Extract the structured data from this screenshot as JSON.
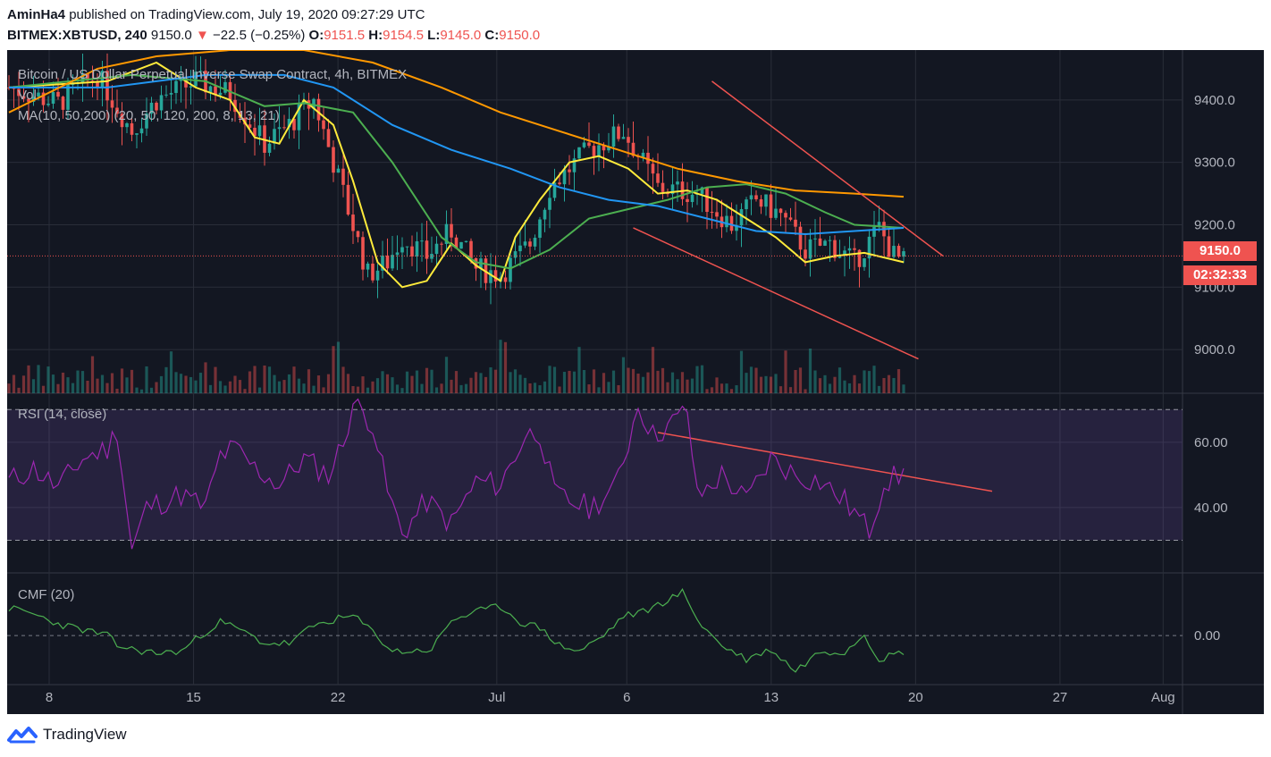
{
  "header": {
    "author": "AminHa4",
    "published_text": "published on TradingView.com, July 19, 2020 09:27:29 UTC",
    "symbol": "BITMEX:XBTUSD, 240",
    "last": "9150.0",
    "change_arrow": "▼",
    "change": "−22.5 (−0.25%)",
    "o_label": "O:",
    "o": "9151.5",
    "h_label": "H:",
    "h": "9154.5",
    "l_label": "L:",
    "l": "9145.0",
    "c_label": "C:",
    "c": "9150.0"
  },
  "legend": {
    "title": "Bitcoin / US Dollar Perpetual Inverse Swap Contract, 4h, BITMEX",
    "vol": "Vol",
    "ma": "MA(10, 50,200) (20, 50, 120, 200, 8, 13, 21)",
    "rsi": "RSI (14, close)",
    "cmf": "CMF (20)"
  },
  "price_tag": {
    "value": "9150.0",
    "countdown": "02:32:33"
  },
  "footer": {
    "brand": "TradingView"
  },
  "colors": {
    "background": "#131722",
    "grid": "#2a2e39",
    "up": "#26a69a",
    "down": "#ef5350",
    "ma_yellow": "#ffeb3b",
    "ma_green": "#4caf50",
    "ma_blue": "#2196f3",
    "ma_orange": "#ff9800",
    "rsi": "#9c27b0",
    "cmf": "#4caf50",
    "trendline": "#ef5350"
  },
  "chart_data": {
    "type": "candlestick",
    "x_ticks": [
      "8",
      "15",
      "22",
      "Jul",
      "6",
      "13",
      "20",
      "27",
      "Aug"
    ],
    "price_axis": {
      "ticks": [
        "9400.0",
        "9300.0",
        "9200.0",
        "9100.0",
        "9000.0"
      ],
      "range": [
        8930,
        9480
      ]
    },
    "rsi_axis": {
      "ticks": [
        "60.00",
        "40.00"
      ],
      "bands": [
        70,
        30
      ],
      "range": [
        20,
        75
      ]
    },
    "cmf_axis": {
      "ticks": [
        "0.00"
      ],
      "range": [
        -0.25,
        0.32
      ]
    },
    "price_path": [
      [
        0,
        9420
      ],
      [
        10,
        9395
      ],
      [
        18,
        9440
      ],
      [
        25,
        9350
      ],
      [
        30,
        9400
      ],
      [
        38,
        9430
      ],
      [
        45,
        9410
      ],
      [
        52,
        9330
      ],
      [
        57,
        9360
      ],
      [
        62,
        9400
      ],
      [
        68,
        9250
      ],
      [
        73,
        9120
      ],
      [
        77,
        9140
      ],
      [
        80,
        9180
      ],
      [
        85,
        9150
      ],
      [
        90,
        9190
      ],
      [
        95,
        9130
      ],
      [
        100,
        9120
      ],
      [
        106,
        9170
      ],
      [
        110,
        9260
      ],
      [
        118,
        9320
      ],
      [
        125,
        9350
      ],
      [
        132,
        9260
      ],
      [
        140,
        9250
      ],
      [
        147,
        9200
      ],
      [
        152,
        9240
      ],
      [
        157,
        9215
      ],
      [
        162,
        9160
      ],
      [
        167,
        9170
      ],
      [
        172,
        9140
      ],
      [
        177,
        9195
      ],
      [
        180,
        9150
      ],
      [
        182,
        9140
      ]
    ],
    "ma_series": [
      {
        "color": "ma_yellow",
        "points": [
          [
            0,
            9420
          ],
          [
            20,
            9430
          ],
          [
            30,
            9460
          ],
          [
            38,
            9420
          ],
          [
            45,
            9400
          ],
          [
            50,
            9340
          ],
          [
            55,
            9330
          ],
          [
            60,
            9400
          ],
          [
            66,
            9360
          ],
          [
            70,
            9270
          ],
          [
            75,
            9140
          ],
          [
            80,
            9100
          ],
          [
            85,
            9110
          ],
          [
            90,
            9170
          ],
          [
            95,
            9135
          ],
          [
            100,
            9110
          ],
          [
            103,
            9180
          ],
          [
            108,
            9240
          ],
          [
            114,
            9300
          ],
          [
            120,
            9310
          ],
          [
            126,
            9290
          ],
          [
            132,
            9250
          ],
          [
            138,
            9255
          ],
          [
            144,
            9240
          ],
          [
            150,
            9210
          ],
          [
            156,
            9180
          ],
          [
            162,
            9140
          ],
          [
            168,
            9150
          ],
          [
            174,
            9155
          ],
          [
            182,
            9140
          ]
        ]
      },
      {
        "color": "ma_green",
        "points": [
          [
            0,
            9420
          ],
          [
            25,
            9440
          ],
          [
            40,
            9430
          ],
          [
            52,
            9390
          ],
          [
            60,
            9395
          ],
          [
            70,
            9380
          ],
          [
            78,
            9300
          ],
          [
            88,
            9180
          ],
          [
            95,
            9140
          ],
          [
            102,
            9130
          ],
          [
            110,
            9160
          ],
          [
            118,
            9210
          ],
          [
            126,
            9225
          ],
          [
            134,
            9240
          ],
          [
            142,
            9260
          ],
          [
            150,
            9265
          ],
          [
            158,
            9250
          ],
          [
            166,
            9220
          ],
          [
            172,
            9200
          ],
          [
            182,
            9195
          ]
        ]
      },
      {
        "color": "ma_blue",
        "points": [
          [
            0,
            9420
          ],
          [
            20,
            9420
          ],
          [
            40,
            9440
          ],
          [
            56,
            9440
          ],
          [
            66,
            9420
          ],
          [
            78,
            9360
          ],
          [
            90,
            9320
          ],
          [
            102,
            9290
          ],
          [
            112,
            9260
          ],
          [
            122,
            9240
          ],
          [
            132,
            9230
          ],
          [
            142,
            9210
          ],
          [
            152,
            9190
          ],
          [
            162,
            9185
          ],
          [
            172,
            9190
          ],
          [
            182,
            9195
          ]
        ]
      },
      {
        "color": "ma_orange",
        "points": [
          [
            0,
            9380
          ],
          [
            18,
            9450
          ],
          [
            30,
            9470
          ],
          [
            45,
            9480
          ],
          [
            60,
            9480
          ],
          [
            74,
            9460
          ],
          [
            88,
            9420
          ],
          [
            100,
            9380
          ],
          [
            112,
            9350
          ],
          [
            124,
            9320
          ],
          [
            136,
            9290
          ],
          [
            148,
            9270
          ],
          [
            160,
            9255
          ],
          [
            172,
            9250
          ],
          [
            182,
            9245
          ]
        ]
      }
    ],
    "trendlines": [
      {
        "pane": "price",
        "from": [
          143,
          9430
        ],
        "to": [
          190,
          9150
        ]
      },
      {
        "pane": "price",
        "from": [
          127,
          9195
        ],
        "to": [
          185,
          8985
        ]
      },
      {
        "pane": "rsi",
        "from": [
          132,
          63
        ],
        "to": [
          200,
          45
        ]
      }
    ],
    "rsi_path": [
      [
        0,
        48
      ],
      [
        5,
        52
      ],
      [
        10,
        46
      ],
      [
        15,
        55
      ],
      [
        20,
        58
      ],
      [
        22,
        64
      ],
      [
        25,
        27
      ],
      [
        28,
        40
      ],
      [
        35,
        44
      ],
      [
        40,
        40
      ],
      [
        43,
        56
      ],
      [
        46,
        58
      ],
      [
        50,
        52
      ],
      [
        55,
        47
      ],
      [
        60,
        55
      ],
      [
        65,
        50
      ],
      [
        68,
        60
      ],
      [
        70,
        72
      ],
      [
        74,
        66
      ],
      [
        77,
        45
      ],
      [
        80,
        32
      ],
      [
        85,
        42
      ],
      [
        90,
        35
      ],
      [
        95,
        48
      ],
      [
        100,
        47
      ],
      [
        105,
        62
      ],
      [
        108,
        63
      ],
      [
        111,
        44
      ],
      [
        114,
        42
      ],
      [
        118,
        40
      ],
      [
        123,
        45
      ],
      [
        126,
        60
      ],
      [
        128,
        72
      ],
      [
        131,
        62
      ],
      [
        135,
        66
      ],
      [
        138,
        70
      ],
      [
        140,
        43
      ],
      [
        145,
        50
      ],
      [
        150,
        42
      ],
      [
        155,
        55
      ],
      [
        160,
        50
      ],
      [
        165,
        48
      ],
      [
        170,
        42
      ],
      [
        175,
        33
      ],
      [
        178,
        48
      ],
      [
        182,
        50
      ]
    ],
    "cmf_path": [
      [
        0,
        0.14
      ],
      [
        5,
        0.11
      ],
      [
        10,
        0.06
      ],
      [
        15,
        0.03
      ],
      [
        20,
        0.0
      ],
      [
        22,
        -0.05
      ],
      [
        25,
        -0.07
      ],
      [
        30,
        -0.09
      ],
      [
        35,
        -0.08
      ],
      [
        40,
        0.02
      ],
      [
        43,
        0.07
      ],
      [
        47,
        0.03
      ],
      [
        52,
        -0.04
      ],
      [
        57,
        -0.04
      ],
      [
        62,
        0.05
      ],
      [
        66,
        0.08
      ],
      [
        70,
        0.1
      ],
      [
        74,
        0.02
      ],
      [
        78,
        -0.08
      ],
      [
        82,
        -0.08
      ],
      [
        86,
        -0.07
      ],
      [
        90,
        0.08
      ],
      [
        95,
        0.12
      ],
      [
        100,
        0.15
      ],
      [
        104,
        0.07
      ],
      [
        108,
        0.04
      ],
      [
        112,
        -0.05
      ],
      [
        116,
        -0.08
      ],
      [
        121,
        0.0
      ],
      [
        125,
        0.1
      ],
      [
        129,
        0.12
      ],
      [
        133,
        0.17
      ],
      [
        137,
        0.22
      ],
      [
        141,
        0.05
      ],
      [
        145,
        -0.05
      ],
      [
        150,
        -0.12
      ],
      [
        155,
        -0.07
      ],
      [
        160,
        -0.18
      ],
      [
        165,
        -0.08
      ],
      [
        170,
        -0.08
      ],
      [
        174,
        0.01
      ],
      [
        177,
        -0.12
      ],
      [
        182,
        -0.08
      ]
    ]
  }
}
